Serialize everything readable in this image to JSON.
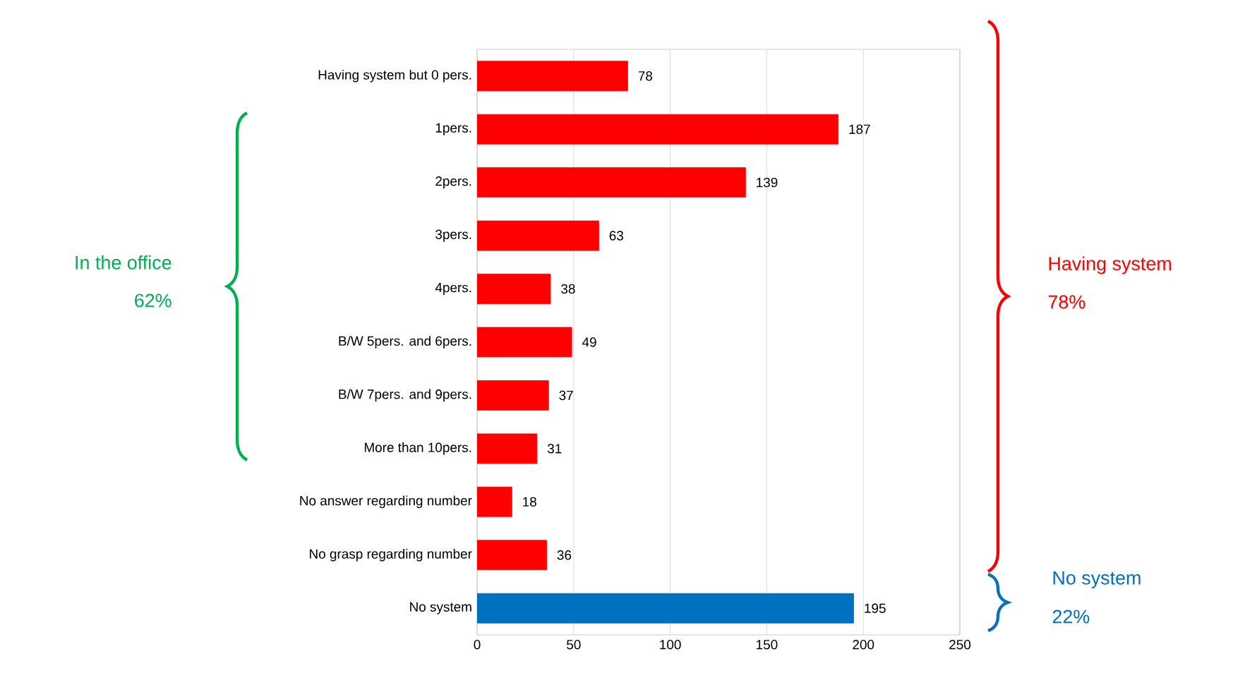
{
  "chart_data": {
    "type": "bar",
    "orientation": "horizontal",
    "categories": [
      "Having system but 0 pers.",
      "1pers.",
      "2pers.",
      "3pers.",
      "4pers.",
      "B/W 5pers. and 6pers.",
      "B/W 7pers. and 9pers.",
      "More than 10pers.",
      "No answer regarding number",
      "No grasp regarding number",
      "No system"
    ],
    "values": [
      78,
      187,
      139,
      63,
      38,
      49,
      37,
      31,
      18,
      36,
      195
    ],
    "colors": [
      "#ff0000",
      "#ff0000",
      "#ff0000",
      "#ff0000",
      "#ff0000",
      "#ff0000",
      "#ff0000",
      "#ff0000",
      "#ff0000",
      "#ff0000",
      "#0070c0"
    ],
    "xlim": [
      0,
      250
    ],
    "xticks": [
      0,
      50,
      100,
      150,
      200,
      250
    ],
    "grid": "x",
    "data_labels": true,
    "annotations": [
      "In the office",
      "62%",
      "Having system",
      "78%",
      "No system",
      "22%"
    ]
  }
}
